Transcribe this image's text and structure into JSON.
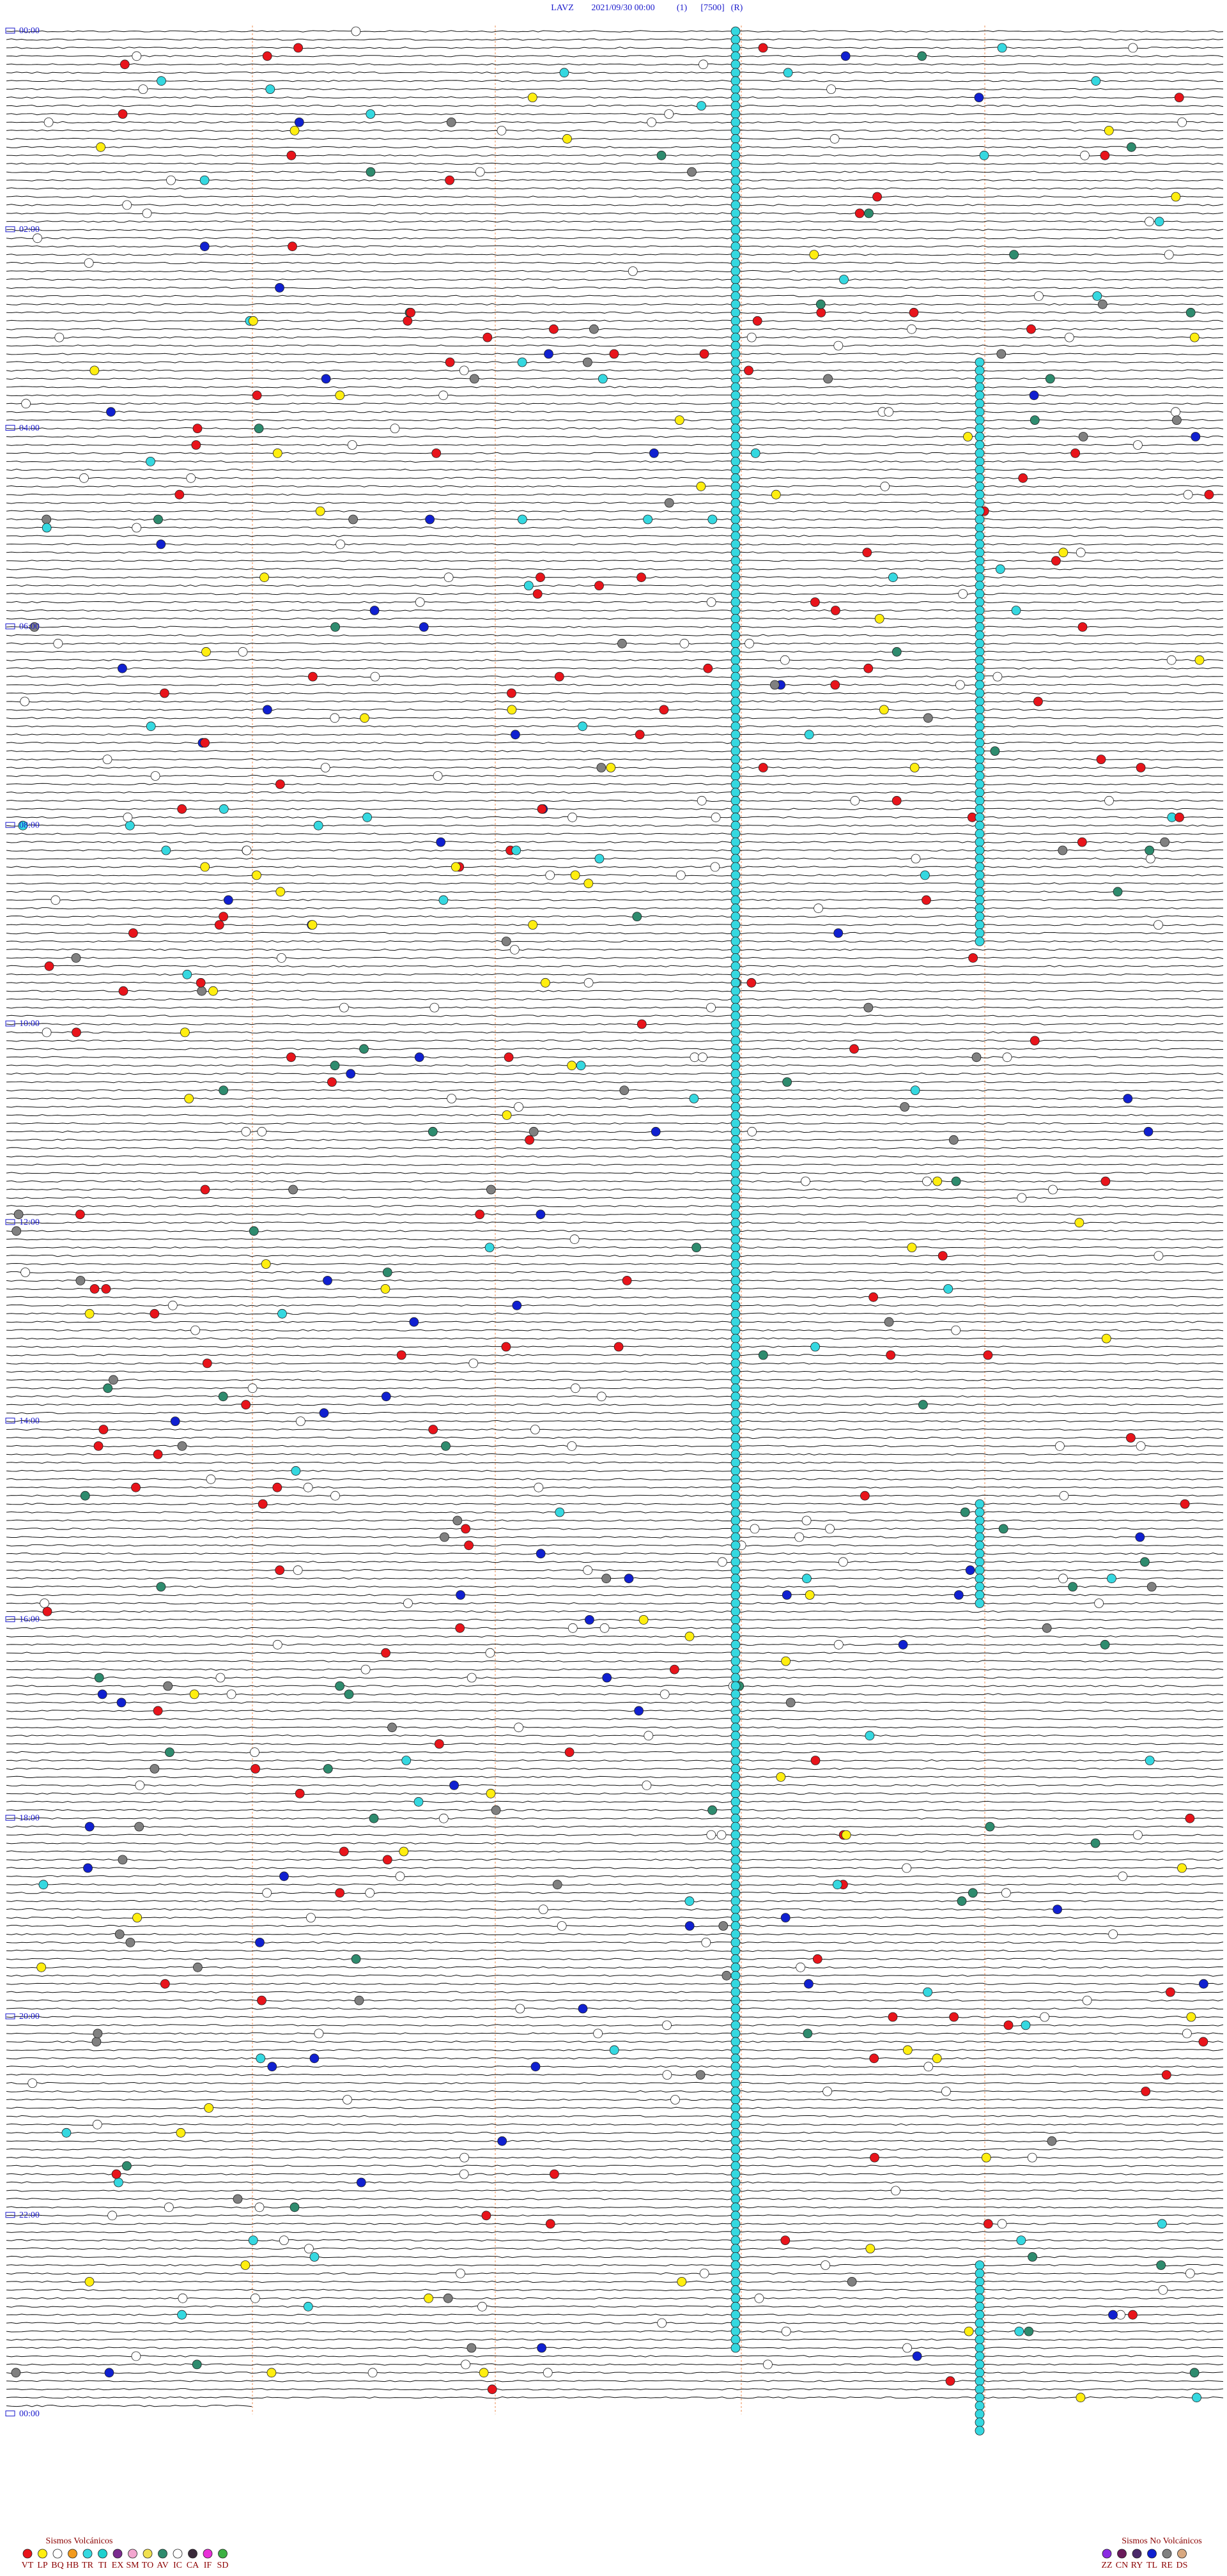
{
  "header": {
    "station": "LAVZ",
    "datetime": "2021/09/30 00:00",
    "params": [
      "(1)",
      "[7500]",
      "(R)"
    ]
  },
  "hour_labels": [
    "00:00",
    "02:00",
    "04:00",
    "06:00",
    "08:00",
    "10:00",
    "12:00",
    "14:00",
    "16:00",
    "18:00",
    "20:00",
    "22:00",
    "00:00"
  ],
  "legend_volcanic": {
    "title": "Sismos Volcánicos",
    "items": [
      {
        "code": "VT",
        "color": "#e8141b"
      },
      {
        "code": "LP",
        "color": "#ffee10"
      },
      {
        "code": "BQ",
        "color": "#ffffff"
      },
      {
        "code": "HB",
        "color": "#f29a1d"
      },
      {
        "code": "TR",
        "color": "#35d8e0"
      },
      {
        "code": "TI",
        "color": "#1fd1cf"
      },
      {
        "code": "EX",
        "color": "#7a2b8f"
      },
      {
        "code": "SM",
        "color": "#f3a6d0"
      },
      {
        "code": "TO",
        "color": "#f0e050"
      },
      {
        "code": "AV",
        "color": "#2e8b6e"
      },
      {
        "code": "IC",
        "color": "#ffffff"
      },
      {
        "code": "CA",
        "color": "#3a2a3a"
      },
      {
        "code": "IF",
        "color": "#e830d8"
      },
      {
        "code": "SD",
        "color": "#3cb043"
      }
    ]
  },
  "legend_nonvolcanic": {
    "title": "Sismos No Volcánicos",
    "items": [
      {
        "code": "ZZ",
        "color": "#8a2be2"
      },
      {
        "code": "CN",
        "color": "#6a1a5a"
      },
      {
        "code": "RY",
        "color": "#4b2a6a"
      },
      {
        "code": "TL",
        "color": "#1020d0"
      },
      {
        "code": "RE",
        "color": "#808080"
      },
      {
        "code": "DS",
        "color": "#d8a880"
      }
    ]
  }
}
